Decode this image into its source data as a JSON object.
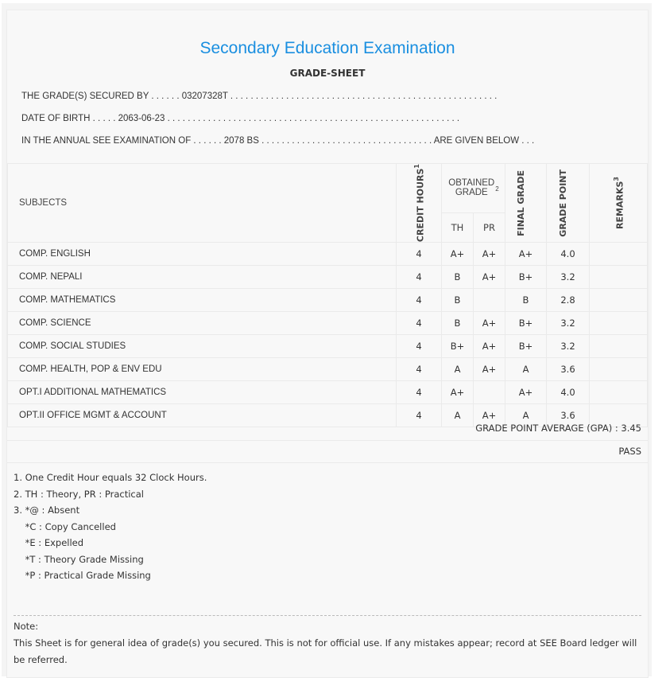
{
  "title": "Secondary Education Examination",
  "subtitle": "GRADE-SHEET",
  "info": {
    "line1": "THE GRADE(S) SECURED BY . . . . . . 03207328T . . . . . . . . . . . . . . . . . . . . . . . . . . . . . . . . . . . . . . . . . . . . . . . . . . . . .",
    "line2": "DATE OF BIRTH . . . . . 2063-06-23 . . . . . . . . . . . . . . . . . . . . . . . . . . . . . . . . . . . . . . . . . . . . . . . . . . . . . . . . . .",
    "line3": "IN THE ANNUAL SEE EXAMINATION OF . . . . . . 2078 BS . . . . . . . . . . . . . . . . . . . . . . . . . . . . . . . . . . ARE GIVEN BELOW . . ."
  },
  "headers": {
    "subjects": "SUBJECTS",
    "credit": "CREDIT HOURS",
    "credit_sup": "1",
    "obtained": "OBTAINED GRADE",
    "obtained_sup": "2",
    "th": "TH",
    "pr": "PR",
    "final": "FINAL GRADE",
    "gp": "GRADE POINT",
    "remarks": "REMARKS",
    "remarks_sup": "3"
  },
  "rows": [
    {
      "subject": "COMP. ENGLISH",
      "credit": "4",
      "th": "A+",
      "pr": "A+",
      "final": "A+",
      "gp": "4.0",
      "remarks": ""
    },
    {
      "subject": "COMP. NEPALI",
      "credit": "4",
      "th": "B",
      "pr": "A+",
      "final": "B+",
      "gp": "3.2",
      "remarks": ""
    },
    {
      "subject": "COMP. MATHEMATICS",
      "credit": "4",
      "th": "B",
      "pr": "",
      "final": "B",
      "gp": "2.8",
      "remarks": ""
    },
    {
      "subject": "COMP. SCIENCE",
      "credit": "4",
      "th": "B",
      "pr": "A+",
      "final": "B+",
      "gp": "3.2",
      "remarks": ""
    },
    {
      "subject": "COMP. SOCIAL STUDIES",
      "credit": "4",
      "th": "B+",
      "pr": "A+",
      "final": "B+",
      "gp": "3.2",
      "remarks": ""
    },
    {
      "subject": "COMP. HEALTH, POP & ENV EDU",
      "credit": "4",
      "th": "A",
      "pr": "A+",
      "final": "A",
      "gp": "3.6",
      "remarks": ""
    },
    {
      "subject": "OPT.I ADDITIONAL MATHEMATICS",
      "credit": "4",
      "th": "A+",
      "pr": "",
      "final": "A+",
      "gp": "4.0",
      "remarks": ""
    },
    {
      "subject": "OPT.II OFFICE MGMT & ACCOUNT",
      "credit": "4",
      "th": "A",
      "pr": "A+",
      "final": "A",
      "gp": "3.6",
      "remarks": ""
    }
  ],
  "gpa": "GRADE POINT AVERAGE (GPA) : 3.45",
  "result": "PASS",
  "footnotes": [
    "1. One Credit Hour equals 32 Clock Hours.",
    "2. TH : Theory, PR : Practical",
    "3. *@ : Absent",
    "    *C : Copy Cancelled",
    "    *E : Expelled",
    "    *T : Theory Grade Missing",
    "    *P : Practical Grade Missing"
  ],
  "note": {
    "label": "Note:",
    "text": "This Sheet is for general idea of grade(s) you secured. This is not for official use. If any mistakes appear; record at SEE Board ledger will be referred."
  }
}
